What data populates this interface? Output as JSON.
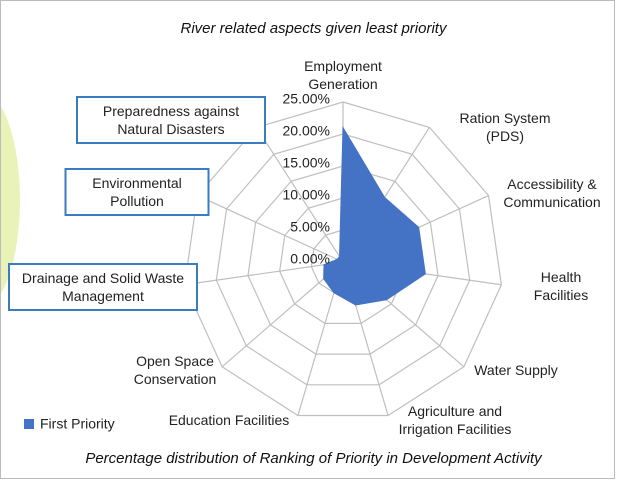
{
  "chart_data": {
    "type": "radar",
    "title": "River related aspects given least priority",
    "caption": "Percentage distribution of Ranking of Priority in Development Activity",
    "categories": [
      "Employment Generation",
      "Ration System (PDS)",
      "Accessibility & Communication",
      "Health Facilities",
      "Water Supply",
      "Agriculture and Irrigation Facilities",
      "Education Facilities",
      "Open Space Conservation",
      "Drainage and Solid Waste Management",
      "Environmental Pollution",
      "Preparedness against Natural Disasters"
    ],
    "series": [
      {
        "name": "First Priority",
        "color": "#4472c4",
        "values": [
          21,
          12,
          13,
          13,
          9,
          7,
          5,
          4,
          3,
          1,
          1
        ]
      }
    ],
    "ylim": [
      0,
      25
    ],
    "yticks": [
      {
        "value": 0,
        "label": "0.00%"
      },
      {
        "value": 5,
        "label": "5.00%"
      },
      {
        "value": 10,
        "label": "10.00%"
      },
      {
        "value": 15,
        "label": "15.00%"
      },
      {
        "value": 20,
        "label": "20.00%"
      },
      {
        "value": 25,
        "label": "25.00%"
      }
    ],
    "grid": true,
    "legend": "bottom-left"
  }
}
